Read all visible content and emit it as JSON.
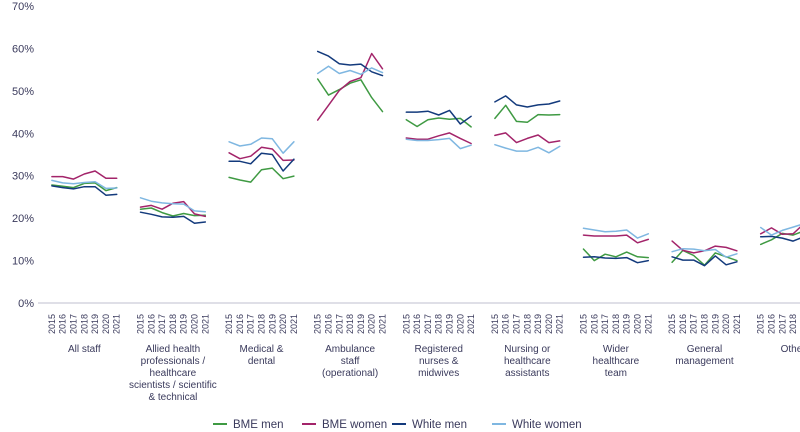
{
  "chart_data": {
    "type": "line",
    "title": "",
    "xlabel": "",
    "ylabel": "",
    "ylim": [
      0,
      70
    ],
    "y_ticks": [
      "0%",
      "10%",
      "20%",
      "30%",
      "40%",
      "50%",
      "60%",
      "70%"
    ],
    "years": [
      "2015",
      "2016",
      "2017",
      "2018",
      "2019",
      "2020",
      "2021"
    ],
    "grid": false,
    "legend_position": "bottom",
    "groups": [
      {
        "label": [
          "All staff"
        ],
        "series": [
          {
            "name": "BME men",
            "values": [
              27.8,
              27.5,
              27.2,
              28.2,
              28.3,
              26.5,
              27.2
            ]
          },
          {
            "name": "BME women",
            "values": [
              29.8,
              29.8,
              29.2,
              30.4,
              31.1,
              29.4,
              29.4
            ]
          },
          {
            "name": "White men",
            "values": [
              27.6,
              27.2,
              26.9,
              27.4,
              27.4,
              25.4,
              25.6
            ]
          },
          {
            "name": "White women",
            "values": [
              28.9,
              28.3,
              28.1,
              28.4,
              28.6,
              27.0,
              27.1
            ]
          }
        ]
      },
      {
        "label": [
          "Allied health",
          "professionals /",
          "healthcare",
          "scientists / scientific",
          "& technical"
        ],
        "series": [
          {
            "name": "BME men",
            "values": [
              22.1,
              22.4,
              21.3,
              20.5,
              21.1,
              20.6,
              20.7
            ]
          },
          {
            "name": "BME women",
            "values": [
              22.6,
              23.0,
              22.1,
              23.5,
              23.9,
              21.0,
              20.4
            ]
          },
          {
            "name": "White men",
            "values": [
              21.4,
              20.9,
              20.3,
              20.2,
              20.4,
              18.8,
              19.1
            ]
          },
          {
            "name": "White women",
            "values": [
              24.8,
              24.0,
              23.6,
              23.4,
              23.3,
              21.7,
              21.5
            ]
          }
        ]
      },
      {
        "label": [
          "Medical &",
          "dental"
        ],
        "series": [
          {
            "name": "BME men",
            "values": [
              29.6,
              29.0,
              28.5,
              31.4,
              31.8,
              29.3,
              29.9
            ]
          },
          {
            "name": "BME women",
            "values": [
              35.4,
              34.0,
              34.6,
              36.7,
              36.3,
              33.6,
              33.7
            ]
          },
          {
            "name": "White men",
            "values": [
              33.4,
              33.4,
              32.8,
              35.3,
              35.0,
              31.1,
              33.9
            ]
          },
          {
            "name": "White women",
            "values": [
              38.0,
              37.0,
              37.4,
              38.9,
              38.7,
              35.3,
              38.0
            ]
          }
        ]
      },
      {
        "label": [
          "Ambulance",
          "staff",
          "(operational)"
        ],
        "series": [
          {
            "name": "BME men",
            "values": [
              52.8,
              49.0,
              50.3,
              51.8,
              52.6,
              48.4,
              45.1
            ]
          },
          {
            "name": "BME women",
            "values": [
              43.1,
              46.6,
              50.1,
              52.2,
              53.1,
              58.8,
              55.2
            ]
          },
          {
            "name": "White men",
            "values": [
              59.3,
              58.2,
              56.4,
              56.1,
              56.3,
              54.5,
              53.6
            ]
          },
          {
            "name": "White women",
            "values": [
              54.1,
              55.8,
              54.1,
              54.8,
              53.9,
              55.4,
              54.3
            ]
          }
        ]
      },
      {
        "label": [
          "Registered",
          "nurses &",
          "midwives"
        ],
        "series": [
          {
            "name": "BME men",
            "values": [
              43.2,
              41.6,
              43.2,
              43.6,
              43.3,
              43.5,
              41.5
            ]
          },
          {
            "name": "BME women",
            "values": [
              38.9,
              38.6,
              38.6,
              39.4,
              40.1,
              38.8,
              37.6
            ]
          },
          {
            "name": "White men",
            "values": [
              45.0,
              45.0,
              45.2,
              44.3,
              45.4,
              42.2,
              44.0
            ]
          },
          {
            "name": "White women",
            "values": [
              38.6,
              38.3,
              38.3,
              38.5,
              38.8,
              36.4,
              37.2
            ]
          }
        ]
      },
      {
        "label": [
          "Nursing or",
          "healthcare",
          "assistants"
        ],
        "series": [
          {
            "name": "BME men",
            "values": [
              43.5,
              46.6,
              42.8,
              42.6,
              44.4,
              44.3,
              44.4
            ]
          },
          {
            "name": "BME women",
            "values": [
              39.5,
              40.1,
              37.8,
              38.8,
              39.6,
              37.8,
              38.2
            ]
          },
          {
            "name": "White men",
            "values": [
              47.4,
              48.8,
              46.7,
              46.2,
              46.7,
              46.9,
              47.6
            ]
          },
          {
            "name": "White women",
            "values": [
              37.3,
              36.5,
              35.8,
              35.8,
              36.7,
              35.4,
              36.9
            ]
          }
        ]
      },
      {
        "label": [
          "Wider",
          "healthcare",
          "team"
        ],
        "series": [
          {
            "name": "BME men",
            "values": [
              12.7,
              10.0,
              11.5,
              10.9,
              12.0,
              10.9,
              10.7
            ]
          },
          {
            "name": "BME women",
            "values": [
              16.0,
              15.8,
              15.8,
              15.8,
              16.0,
              14.2,
              15.0
            ]
          },
          {
            "name": "White men",
            "values": [
              10.8,
              10.9,
              10.6,
              10.5,
              10.7,
              9.5,
              10.0
            ]
          },
          {
            "name": "White women",
            "values": [
              17.6,
              17.2,
              16.8,
              16.9,
              17.2,
              15.3,
              16.3
            ]
          }
        ]
      },
      {
        "label": [
          "General",
          "management"
        ],
        "series": [
          {
            "name": "BME men",
            "values": [
              9.6,
              12.4,
              11.2,
              8.9,
              11.8,
              10.9,
              10.0
            ]
          },
          {
            "name": "BME women",
            "values": [
              14.6,
              12.4,
              11.8,
              12.3,
              13.4,
              13.1,
              12.3
            ]
          },
          {
            "name": "White men",
            "values": [
              10.9,
              10.1,
              10.1,
              8.8,
              11.1,
              9.0,
              9.7
            ]
          },
          {
            "name": "White women",
            "values": [
              12.1,
              12.8,
              12.7,
              12.3,
              12.6,
              10.8,
              11.6
            ]
          }
        ]
      },
      {
        "label": [
          "Other"
        ],
        "series": [
          {
            "name": "BME men",
            "values": [
              13.8,
              14.9,
              16.4,
              16.0,
              17.0,
              16.1,
              16.4
            ]
          },
          {
            "name": "BME women",
            "values": [
              16.3,
              17.7,
              16.2,
              16.3,
              18.7,
              17.1,
              17.9
            ]
          },
          {
            "name": "White men",
            "values": [
              15.6,
              15.7,
              15.3,
              14.6,
              15.6,
              15.6,
              15.0
            ]
          },
          {
            "name": "White women",
            "values": [
              17.8,
              16.0,
              17.1,
              17.9,
              18.7,
              17.0,
              18.1
            ]
          }
        ]
      }
    ],
    "legend": [
      {
        "name": "BME men",
        "color": "#3f9a43"
      },
      {
        "name": "BME women",
        "color": "#a3246a"
      },
      {
        "name": "White men",
        "color": "#133a7c"
      },
      {
        "name": "White women",
        "color": "#7fb7e1"
      }
    ]
  }
}
